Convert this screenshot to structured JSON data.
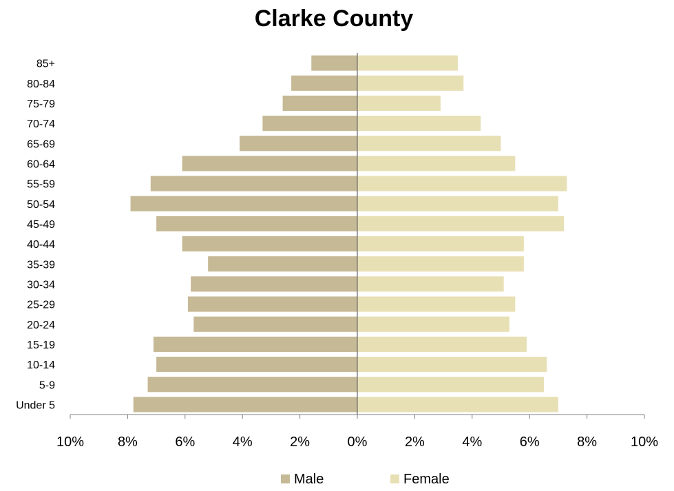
{
  "chart_data": {
    "type": "bar",
    "orientation": "horizontal",
    "title": "Clarke County",
    "categories": [
      "85+",
      "80-84",
      "75-79",
      "70-74",
      "65-69",
      "60-64",
      "55-59",
      "50-54",
      "45-49",
      "40-44",
      "35-39",
      "30-34",
      "25-29",
      "20-24",
      "15-19",
      "10-14",
      "5-9",
      "Under 5"
    ],
    "series": [
      {
        "name": "Male",
        "color": "#c6b995",
        "values": [
          1.6,
          2.3,
          2.6,
          3.3,
          4.1,
          6.1,
          7.2,
          7.9,
          7.0,
          6.1,
          5.2,
          5.8,
          5.9,
          5.7,
          7.1,
          7.0,
          7.3,
          7.8
        ]
      },
      {
        "name": "Female",
        "color": "#e8e0b5",
        "values": [
          3.5,
          3.7,
          2.9,
          4.3,
          5.0,
          5.5,
          7.3,
          7.0,
          7.2,
          5.8,
          5.8,
          5.1,
          5.5,
          5.3,
          5.9,
          6.6,
          6.5,
          7.0
        ]
      }
    ],
    "xlim": [
      -10,
      10
    ],
    "x_ticks": [
      -10,
      -8,
      -6,
      -4,
      -2,
      0,
      2,
      4,
      6,
      8,
      10
    ],
    "x_tick_labels": [
      "10%",
      "8%",
      "6%",
      "4%",
      "2%",
      "0%",
      "2%",
      "4%",
      "6%",
      "8%",
      "10%"
    ],
    "legend_position": "bottom",
    "grid": false
  }
}
